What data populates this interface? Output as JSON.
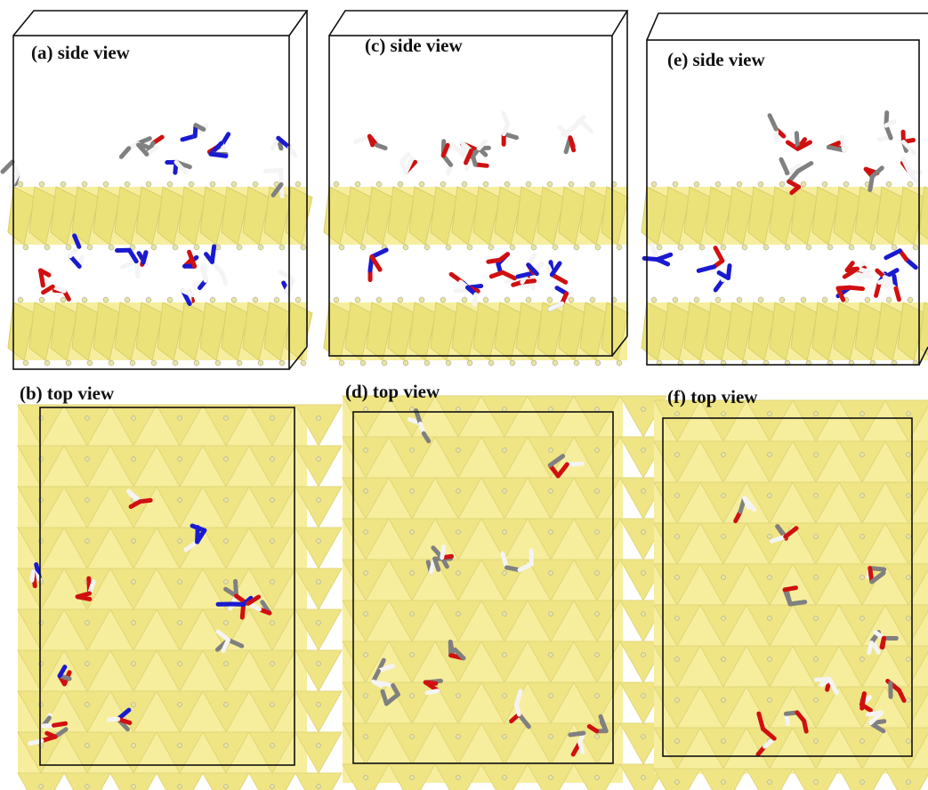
{
  "panels": [
    {
      "label": "(a) side view"
    },
    {
      "label": "(b) top view"
    },
    {
      "label": "(c) side view"
    },
    {
      "label": "(d) top view"
    },
    {
      "label": "(e) side view"
    },
    {
      "label": "(f) top view"
    }
  ]
}
